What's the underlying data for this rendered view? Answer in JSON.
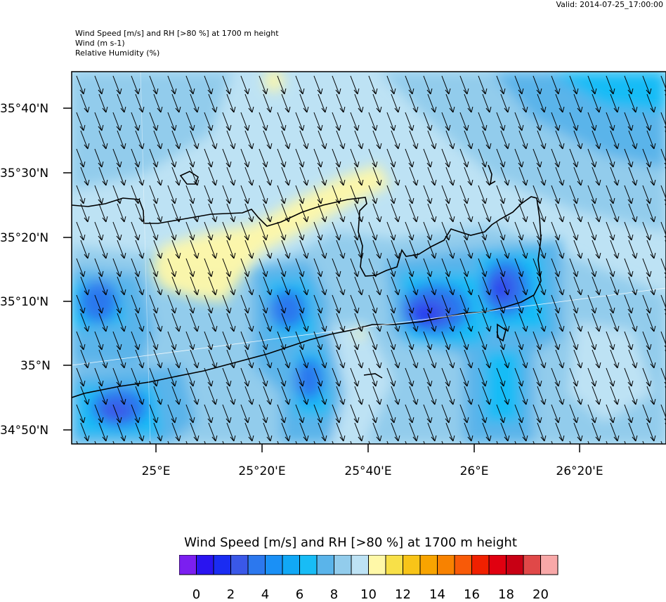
{
  "valid_time": "Valid: 2014-07-25_17:00:00",
  "header": {
    "line1": "Wind Speed [m/s] and RH [>80 %] at 1700 m height",
    "line2": "Wind   (m s-1)",
    "line3": "Relative Humidity   (%)"
  },
  "axes": {
    "lat_labels": [
      "35°40'N",
      "35°30'N",
      "35°20'N",
      "35°10'N",
      "35°N",
      "34°50'N"
    ],
    "lon_labels": [
      "25°E",
      "25°20'E",
      "25°40'E",
      "26°E",
      "26°20'E"
    ]
  },
  "colorbar": {
    "title": "Wind Speed [m/s] and RH [>80 %] at 1700 m height",
    "colors": [
      "#7b1ff0",
      "#2a14f0",
      "#1a2cf2",
      "#3a58e8",
      "#2c78ee",
      "#1a90f6",
      "#11a8f6",
      "#18bcf6",
      "#5ab4ea",
      "#92ccec",
      "#bde2f4",
      "#fff8a8",
      "#f8e048",
      "#f8c418",
      "#f8a400",
      "#f88200",
      "#f85a08",
      "#f02000",
      "#e00010",
      "#c80014",
      "#e04848",
      "#f8a8a8"
    ],
    "tick_labels": [
      "0",
      "2",
      "4",
      "6",
      "8",
      "10",
      "12",
      "14",
      "16",
      "18",
      "20"
    ]
  }
}
